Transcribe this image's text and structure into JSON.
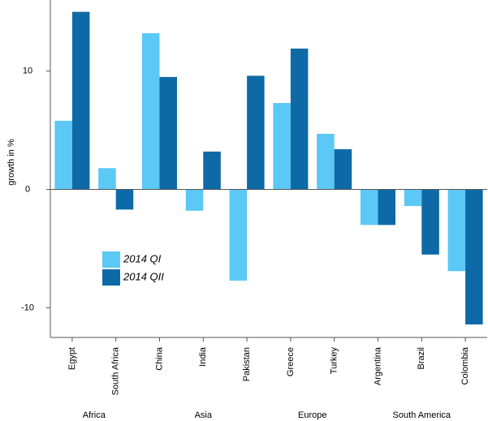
{
  "chart_data": {
    "type": "bar",
    "y_label": "growth in %",
    "groups": [
      {
        "name": "Africa",
        "categories": [
          "Egypt",
          "South Africa"
        ]
      },
      {
        "name": "Asia",
        "categories": [
          "China",
          "India",
          "Pakistan"
        ]
      },
      {
        "name": "Europe",
        "categories": [
          "Greece",
          "Turkey"
        ]
      },
      {
        "name": "South America",
        "categories": [
          "Argentina",
          "Brazil",
          "Colombia"
        ]
      }
    ],
    "series": [
      {
        "name": "2014 QI",
        "color": "#5bc8f5",
        "values": [
          5.8,
          1.8,
          13.2,
          -1.8,
          -7.7,
          7.3,
          4.7,
          -3.0,
          -1.4,
          -6.9
        ]
      },
      {
        "name": "2014 QII",
        "color": "#0e6aa6",
        "values": [
          15.0,
          -1.7,
          9.5,
          3.2,
          9.6,
          11.9,
          3.4,
          -3.0,
          -5.5,
          -11.4
        ]
      }
    ],
    "ylim": [
      -12.5,
      16
    ],
    "yticks": [
      -10,
      0,
      10
    ],
    "grid": false
  }
}
